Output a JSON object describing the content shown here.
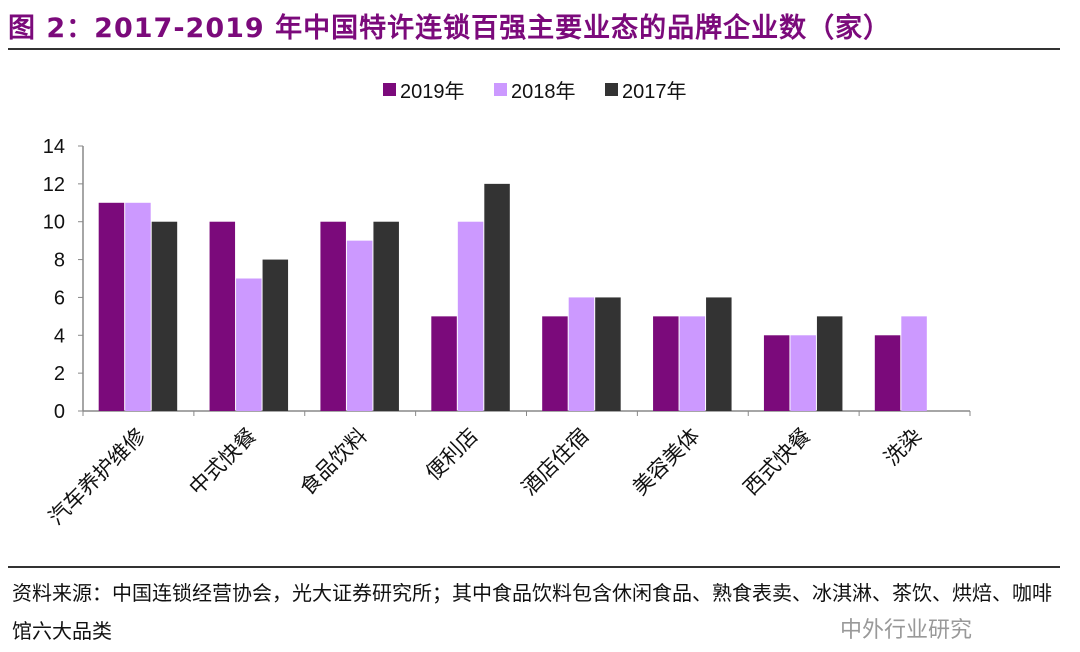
{
  "title": "图 2：2017-2019 年中国特许连锁百强主要业态的品牌企业数（家）",
  "source": "资料来源：中国连锁经营协会，光大证券研究所；其中食品饮料包含休闲食品、熟食表卖、冰淇淋、茶饮、烘焙、咖啡馆六大品类",
  "watermark": "中外行业研究",
  "chart_data": {
    "type": "bar",
    "categories": [
      "汽车养护维修",
      "中式快餐",
      "食品饮料",
      "便利店",
      "酒店住宿",
      "美容美体",
      "西式快餐",
      "洗染"
    ],
    "series": [
      {
        "name": "2019年",
        "color": "#7b0a7b",
        "values": [
          11,
          10,
          10,
          5,
          5,
          5,
          4,
          4
        ]
      },
      {
        "name": "2018年",
        "color": "#cc99ff",
        "values": [
          11,
          7,
          9,
          10,
          6,
          5,
          4,
          5
        ]
      },
      {
        "name": "2017年",
        "color": "#333333",
        "values": [
          10,
          8,
          10,
          12,
          6,
          6,
          5,
          null
        ]
      }
    ],
    "ylim": [
      0,
      14
    ],
    "yticks": [
      0,
      2,
      4,
      6,
      8,
      10,
      12,
      14
    ],
    "grid": false,
    "legend": "top"
  }
}
